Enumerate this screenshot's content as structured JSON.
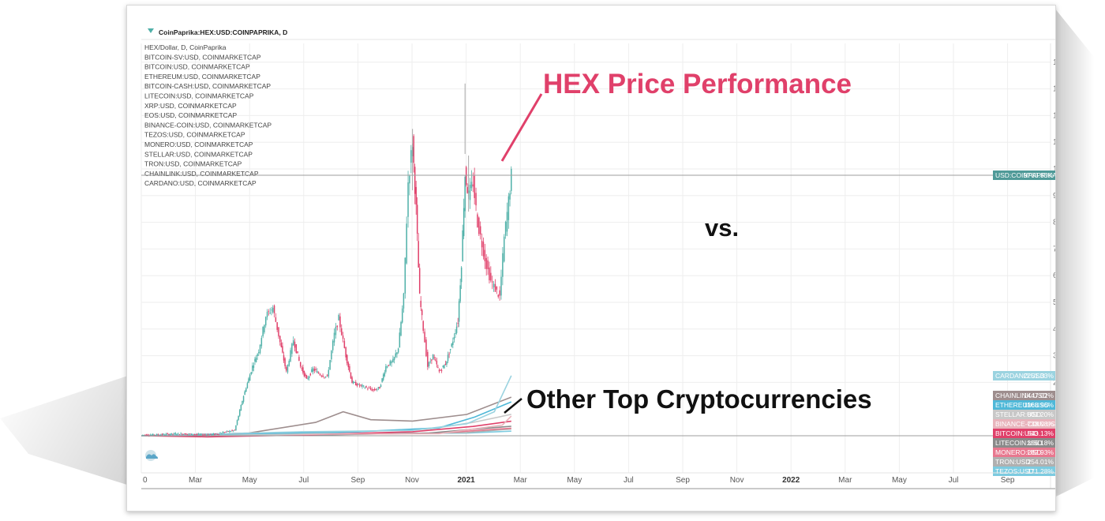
{
  "chart_data": {
    "type": "line",
    "symbol": "CoinPaprika:HEX:USD:COINPAPRIKA, D",
    "legend": [
      "HEX/Dollar, D, CoinPaprika",
      "BITCOIN-SV:USD, COINMARKETCAP",
      "BITCOIN:USD, COINMARKETCAP",
      "ETHEREUM:USD, COINMARKETCAP",
      "BITCOIN-CASH:USD, COINMARKETCAP",
      "LITECOIN:USD, COINMARKETCAP",
      "XRP:USD, COINMARKETCAP",
      "EOS:USD, COINMARKETCAP",
      "BINANCE-COIN:USD, COINMARKETCAP",
      "TEZOS:USD, COINMARKETCAP",
      "MONERO:USD, COINMARKETCAP",
      "STELLAR:USD, COINMARKETCAP",
      "TRON:USD, COINMARKETCAP",
      "CHAINLINK:USD, COINMARKETCAP",
      "CARDANO:USD, COINMARKETCAP"
    ],
    "x_axis_labels": [
      "0",
      "Mar",
      "May",
      "Jul",
      "Sep",
      "Nov",
      "2021",
      "Mar",
      "May",
      "Jul",
      "Sep",
      "Nov",
      "2022",
      "Mar",
      "May",
      "Jul",
      "Sep"
    ],
    "y_axis_labels": [
      "14000.00%",
      "13000.00%",
      "12000.00%",
      "11000.00%",
      "10000.00%",
      "9000.00%",
      "8000.00%",
      "7000.00%",
      "6000.00%",
      "5000.00%",
      "4000.00%",
      "3000.00%",
      "2000.00%"
    ],
    "y_unit": "%",
    "ylim": [
      0,
      14500
    ],
    "hex_series": {
      "name": "HEX",
      "points": [
        [
          "2020-01-01",
          30
        ],
        [
          "2020-01-20",
          40
        ],
        [
          "2020-02-10",
          80
        ],
        [
          "2020-02-25",
          60
        ],
        [
          "2020-03-10",
          30
        ],
        [
          "2020-03-25",
          60
        ],
        [
          "2020-04-05",
          150
        ],
        [
          "2020-04-15",
          200
        ],
        [
          "2020-04-25",
          1500
        ],
        [
          "2020-05-05",
          2600
        ],
        [
          "2020-05-12",
          3200
        ],
        [
          "2020-05-20",
          4500
        ],
        [
          "2020-05-28",
          4800
        ],
        [
          "2020-06-05",
          3500
        ],
        [
          "2020-06-12",
          2400
        ],
        [
          "2020-06-20",
          3600
        ],
        [
          "2020-06-28",
          2600
        ],
        [
          "2020-07-05",
          2100
        ],
        [
          "2020-07-12",
          2500
        ],
        [
          "2020-07-20",
          2300
        ],
        [
          "2020-07-28",
          2200
        ],
        [
          "2020-08-05",
          3800
        ],
        [
          "2020-08-10",
          4400
        ],
        [
          "2020-08-18",
          3000
        ],
        [
          "2020-08-25",
          2000
        ],
        [
          "2020-09-01",
          1900
        ],
        [
          "2020-09-10",
          1800
        ],
        [
          "2020-09-18",
          1700
        ],
        [
          "2020-09-25",
          1800
        ],
        [
          "2020-10-02",
          2600
        ],
        [
          "2020-10-10",
          2800
        ],
        [
          "2020-10-16",
          3300
        ],
        [
          "2020-10-22",
          5200
        ],
        [
          "2020-10-27",
          9500
        ],
        [
          "2020-11-01",
          11000
        ],
        [
          "2020-11-05",
          8500
        ],
        [
          "2020-11-09",
          5200
        ],
        [
          "2020-11-13",
          4000
        ],
        [
          "2020-11-18",
          2600
        ],
        [
          "2020-11-24",
          3000
        ],
        [
          "2020-12-01",
          2400
        ],
        [
          "2020-12-08",
          2700
        ],
        [
          "2020-12-15",
          3400
        ],
        [
          "2020-12-22",
          4300
        ],
        [
          "2020-12-26",
          6500
        ],
        [
          "2020-12-30",
          9800
        ],
        [
          "2021-01-03",
          9000
        ],
        [
          "2021-01-08",
          9500
        ],
        [
          "2021-01-13",
          8000
        ],
        [
          "2021-01-18",
          7200
        ],
        [
          "2021-01-23",
          6400
        ],
        [
          "2021-01-28",
          5800
        ],
        [
          "2021-02-02",
          5500
        ],
        [
          "2021-02-07",
          5200
        ],
        [
          "2021-02-12",
          7400
        ],
        [
          "2021-02-17",
          8800
        ],
        [
          "2021-02-20",
          9763
        ]
      ]
    },
    "other_series": [
      {
        "name": "CARDANO:USD",
        "color": "#9bd3e0",
        "end_label": "2251.33%",
        "points": [
          [
            "2020-01-01",
            0
          ],
          [
            "2020-07-01",
            150
          ],
          [
            "2020-11-01",
            200
          ],
          [
            "2021-01-01",
            450
          ],
          [
            "2021-02-01",
            900
          ],
          [
            "2021-02-20",
            2251
          ]
        ]
      },
      {
        "name": "CHAINLINK:USD",
        "color": "#9e8e8e",
        "end_label": "1447.02%",
        "points": [
          [
            "2020-01-01",
            0
          ],
          [
            "2020-05-01",
            100
          ],
          [
            "2020-07-15",
            500
          ],
          [
            "2020-08-15",
            900
          ],
          [
            "2020-09-15",
            600
          ],
          [
            "2020-11-01",
            550
          ],
          [
            "2021-01-01",
            800
          ],
          [
            "2021-02-20",
            1447
          ]
        ]
      },
      {
        "name": "ETHEREUM:USD",
        "color": "#4fb8d8",
        "end_label": "1268.96%",
        "points": [
          [
            "2020-01-01",
            0
          ],
          [
            "2020-05-01",
            80
          ],
          [
            "2020-09-01",
            150
          ],
          [
            "2020-12-01",
            300
          ],
          [
            "2021-01-10",
            700
          ],
          [
            "2021-02-20",
            1269
          ]
        ]
      },
      {
        "name": "STELLAR:USD",
        "color": "#c8c8c8",
        "end_label": "801.20%",
        "points": [
          [
            "2020-01-01",
            0
          ],
          [
            "2020-06-01",
            40
          ],
          [
            "2020-11-20",
            250
          ],
          [
            "2021-01-08",
            500
          ],
          [
            "2021-02-20",
            801
          ]
        ]
      },
      {
        "name": "BINANCE-COIN:USD",
        "color": "#e8b4bc",
        "end_label": "738.08%",
        "points": [
          [
            "2020-01-01",
            0
          ],
          [
            "2020-08-01",
            60
          ],
          [
            "2020-12-01",
            80
          ],
          [
            "2021-02-10",
            400
          ],
          [
            "2021-02-20",
            738
          ]
        ]
      },
      {
        "name": "BITCOIN:USD",
        "color": "#e0406a",
        "end_label": "543.13%",
        "points": [
          [
            "2020-01-01",
            0
          ],
          [
            "2020-03-15",
            -40
          ],
          [
            "2020-07-01",
            30
          ],
          [
            "2020-11-01",
            150
          ],
          [
            "2021-01-08",
            350
          ],
          [
            "2021-02-20",
            543
          ]
        ]
      },
      {
        "name": "LITECOIN:USD",
        "color": "#8a8a8a",
        "end_label": "356.18%",
        "points": [
          [
            "2020-01-01",
            0
          ],
          [
            "2020-07-01",
            20
          ],
          [
            "2020-11-20",
            100
          ],
          [
            "2021-01-10",
            250
          ],
          [
            "2021-02-20",
            356
          ]
        ]
      },
      {
        "name": "MONERO:USD",
        "color": "#e8788f",
        "end_label": "282.93%",
        "points": [
          [
            "2020-01-01",
            0
          ],
          [
            "2020-07-01",
            30
          ],
          [
            "2020-12-01",
            100
          ],
          [
            "2021-02-20",
            283
          ]
        ]
      },
      {
        "name": "TRON:USD",
        "color": "#b0b0b0",
        "end_label": "254.01%",
        "points": [
          [
            "2020-01-01",
            0
          ],
          [
            "2020-09-01",
            60
          ],
          [
            "2021-01-01",
            120
          ],
          [
            "2021-02-20",
            254
          ]
        ]
      },
      {
        "name": "TEZOS:USD",
        "color": "#7ccbe0",
        "end_label": "171.28%",
        "points": [
          [
            "2020-01-01",
            0
          ],
          [
            "2020-08-01",
            80
          ],
          [
            "2021-01-01",
            100
          ],
          [
            "2021-02-20",
            171
          ]
        ]
      }
    ],
    "price_tag": {
      "name": "USD:COINPAPRIKA",
      "value": "9763.85%"
    },
    "grid": true
  },
  "annotations": {
    "hex": "HEX Price Performance",
    "vs": "vs.",
    "other": "Other Top Cryptocurrencies"
  },
  "colors": {
    "up": "#4fb0a8",
    "down": "#e0406a",
    "price_tag": "#4f9a98"
  }
}
